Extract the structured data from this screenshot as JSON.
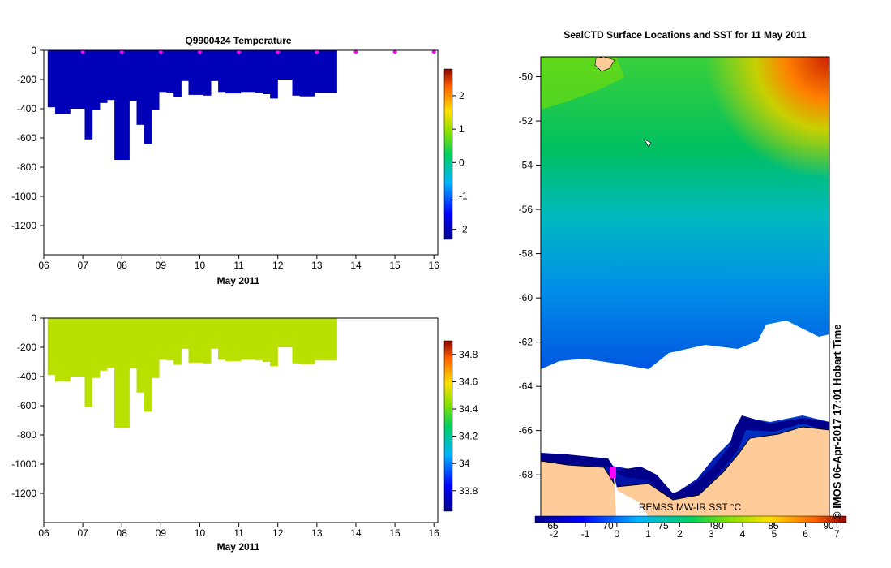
{
  "chart_data": [
    {
      "type": "heatmap",
      "title": "Q9900424  Temperature",
      "xlabel": "May 2011",
      "x_ticks": [
        "06",
        "07",
        "08",
        "09",
        "10",
        "11",
        "12",
        "13",
        "14",
        "15",
        "16"
      ],
      "y_ticks": [
        "0",
        "-200",
        "-400",
        "-600",
        "-800",
        "-1000",
        "-1200"
      ],
      "ylim": [
        -1400,
        0
      ],
      "xlim": [
        6,
        16.1
      ],
      "colorbar_ticks": [
        "2",
        "1",
        "0",
        "-1",
        "-2"
      ],
      "colorbar_range": [
        -2.3,
        2.8
      ],
      "profile_start_day": 6.1,
      "profile_step_days": 0.19,
      "profile_depths": [
        390,
        435,
        435,
        400,
        400,
        610,
        410,
        360,
        340,
        750,
        750,
        345,
        510,
        640,
        410,
        285,
        290,
        320,
        210,
        305,
        305,
        310,
        210,
        285,
        295,
        295,
        285,
        285,
        290,
        300,
        330,
        200,
        200,
        310,
        315,
        315,
        290,
        290,
        290
      ],
      "profile_value": -2.0,
      "surface_markers_days": [
        7,
        8,
        9,
        10,
        11,
        12,
        13,
        14,
        15,
        16
      ]
    },
    {
      "type": "heatmap",
      "title": "",
      "xlabel": "May 2011",
      "x_ticks": [
        "06",
        "07",
        "08",
        "09",
        "10",
        "11",
        "12",
        "13",
        "14",
        "15",
        "16"
      ],
      "y_ticks": [
        "0",
        "-200",
        "-400",
        "-600",
        "-800",
        "-1000",
        "-1200"
      ],
      "ylim": [
        -1400,
        0
      ],
      "xlim": [
        6,
        16.1
      ],
      "colorbar_ticks": [
        "34.8",
        "34.6",
        "34.4",
        "34.2",
        "34",
        "33.8"
      ],
      "colorbar_range": [
        33.65,
        34.9
      ],
      "profile_value": 34.5
    },
    {
      "type": "heatmap",
      "title": "SealCTD Surface Locations and SST for 11 May 2011",
      "y_ticks": [
        "-50",
        "-52",
        "-54",
        "-56",
        "-58",
        "-60",
        "-62",
        "-64",
        "-66",
        "-68"
      ],
      "ylim": [
        -69.9,
        -49.1
      ],
      "x_ticks": [
        "65",
        "70",
        "75",
        "80",
        "85",
        "90"
      ],
      "colorbar_ticks": [
        "-2",
        "-1",
        "0",
        "1",
        "2",
        "3",
        "4",
        "5",
        "6",
        "7"
      ],
      "colorbar_range": [
        -2.6,
        7.3
      ],
      "source_label": "REMSS MW-IR SST °C",
      "credit": "© IMOS 06-Apr-2017 17:01 Hobart Time"
    }
  ],
  "colors": {
    "navy": "#00008b",
    "land": "#ffcc99",
    "marker": "#ff00ff"
  }
}
